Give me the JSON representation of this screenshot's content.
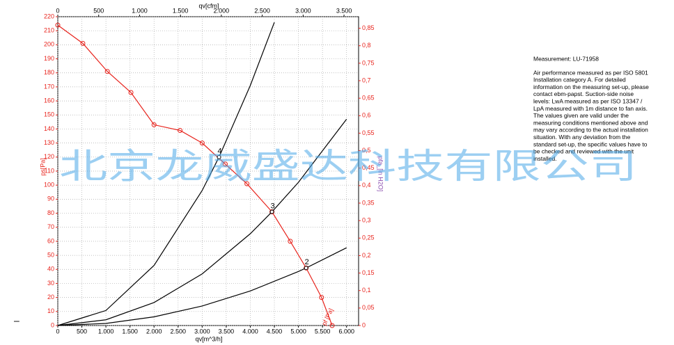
{
  "chart_data": {
    "type": "line",
    "x_label": "qv[m^3/h]",
    "x2_label": "qv[cfm]",
    "y_label": "ps[Pa]",
    "y2_label": "pfa_[in H2O]",
    "xlim": [
      0,
      6250
    ],
    "ylim": [
      0,
      220
    ],
    "x2lim": [
      0,
      3678
    ],
    "y2lim": [
      0,
      0.883
    ],
    "grid": true,
    "xticks": [
      0,
      500,
      {
        "value": 1000,
        "label": "1.000"
      },
      {
        "value": 1500,
        "label": "1.500"
      },
      {
        "value": 2000,
        "label": "2.000"
      },
      {
        "value": 2500,
        "label": "2.500"
      },
      {
        "value": 3000,
        "label": "3.000"
      },
      {
        "value": 3500,
        "label": "3.500"
      },
      {
        "value": 4000,
        "label": "4.000"
      },
      {
        "value": 4500,
        "label": "4.500"
      },
      {
        "value": 5000,
        "label": "5.000"
      },
      {
        "value": 5500,
        "label": "5.500"
      },
      {
        "value": 6000,
        "label": "6.000"
      }
    ],
    "x2ticks": [
      0,
      500,
      {
        "value": 1000,
        "label": "1.000"
      },
      {
        "value": 1500,
        "label": "1.500"
      },
      {
        "value": 2000,
        "label": "2.000"
      },
      {
        "value": 2500,
        "label": "2.500"
      },
      {
        "value": 3000,
        "label": "3.000"
      },
      {
        "value": 3500,
        "label": "3.500"
      }
    ],
    "yticks": [
      0,
      10,
      20,
      30,
      40,
      50,
      60,
      70,
      80,
      90,
      100,
      110,
      120,
      130,
      140,
      150,
      160,
      170,
      180,
      190,
      200,
      210,
      220
    ],
    "y2ticks": [
      0,
      {
        "value": 0.05,
        "label": "0,05"
      },
      {
        "value": 0.1,
        "label": "0,1"
      },
      {
        "value": 0.15,
        "label": "0,15"
      },
      {
        "value": 0.2,
        "label": "0,2"
      },
      {
        "value": 0.25,
        "label": "0,25"
      },
      {
        "value": 0.3,
        "label": "0,3"
      },
      {
        "value": 0.35,
        "label": "0,35"
      },
      {
        "value": 0.4,
        "label": "0,4"
      },
      {
        "value": 0.45,
        "label": "0,45"
      },
      {
        "value": 0.5,
        "label": "0,5"
      },
      {
        "value": 0.55,
        "label": "0,55"
      },
      {
        "value": 0.6,
        "label": "0,6"
      },
      {
        "value": 0.65,
        "label": "0,65"
      },
      {
        "value": 0.7,
        "label": "0,7"
      },
      {
        "value": 0.75,
        "label": "0,75"
      },
      {
        "value": 0.8,
        "label": "0,8"
      },
      {
        "value": 0.85,
        "label": "0,85"
      }
    ],
    "series": [
      {
        "name": "pf [Pa]",
        "color": "#e8231c",
        "markers": true,
        "x": [
          0,
          520,
          1030,
          1520,
          2000,
          2540,
          3000,
          3480,
          3930,
          4450,
          4830,
          5160,
          5480,
          5700
        ],
        "values": [
          214,
          201,
          181,
          166,
          143,
          139,
          130,
          115,
          101,
          81,
          60,
          41,
          20,
          0
        ]
      },
      {
        "color": "#000000",
        "markers": false,
        "x": [
          0,
          1000,
          2000,
          3000,
          3350,
          4000,
          4500
        ],
        "values": [
          0,
          10.7,
          42.8,
          96.2,
          120,
          171,
          216
        ]
      },
      {
        "color": "#000000",
        "markers": false,
        "x": [
          0,
          1000,
          2000,
          3000,
          4000,
          4450,
          5000,
          6000
        ],
        "values": [
          0,
          4.1,
          16.4,
          36.8,
          65.4,
          81,
          102,
          147
        ]
      },
      {
        "color": "#000000",
        "markers": false,
        "x": [
          0,
          1000,
          2000,
          3000,
          4000,
          5000,
          5160,
          6000
        ],
        "values": [
          0,
          1.5,
          6.2,
          13.9,
          24.6,
          38.5,
          41,
          55.4
        ]
      }
    ],
    "annotations": [
      {
        "text": "4",
        "x": 3350,
        "y": 120
      },
      {
        "text": "3",
        "x": 4450,
        "y": 81
      },
      {
        "text": "2",
        "x": 5160,
        "y": 41
      }
    ],
    "side_note": {
      "title": "Measurement: LU-71958",
      "lines": [
        "Air performance measured as per ISO 5801",
        "Installation category A. For detailed",
        "information on the measuring set-up, please",
        "contact ebm-papst. Suction-side noise",
        "levels: LwA measured as per ISO 13347 /",
        "LpA measured with 1m distance to fan axis.",
        "The values given are valid under the",
        "measuring conditions mentioned above and",
        "may vary according to the actual installation",
        "situation. With any deviation from the",
        "standard set-up, the specific values have to",
        "be checked and reviewed with the unit",
        "installed."
      ]
    },
    "dash": "–",
    "watermark": "北京龙威盛达科技有限公司"
  }
}
